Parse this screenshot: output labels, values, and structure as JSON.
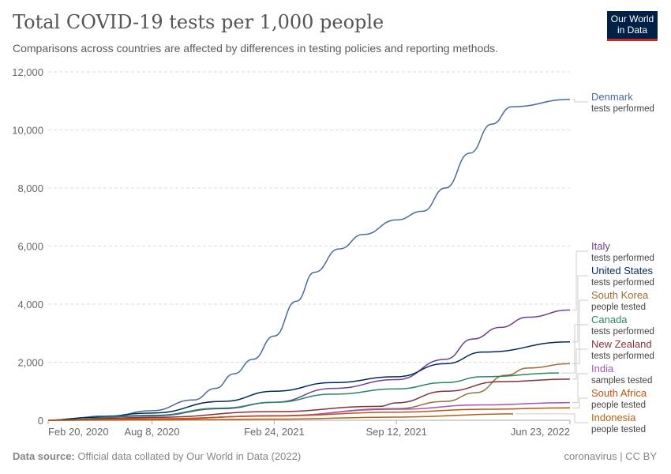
{
  "header": {
    "title": "Total COVID-19 tests per 1,000 people",
    "subtitle": "Comparisons across countries are affected by differences in testing policies and reporting methods.",
    "logo": "Our World in Data"
  },
  "footer": {
    "source_label": "Data source:",
    "source": "Official data collated by Our World in Data (2022)",
    "license": "coronavirus | CC BY"
  },
  "chart_data": {
    "type": "line",
    "title": "Total COVID-19 tests per 1,000 people",
    "xlim": [
      "2020-02-20",
      "2022-06-23"
    ],
    "ylim": [
      0,
      12000
    ],
    "x_ticks": [
      "Feb 20, 2020",
      "Aug 8, 2020",
      "Feb 24, 2021",
      "Sep 12, 2021",
      "Jun 23, 2022"
    ],
    "x_tick_dates": [
      "2020-02-20",
      "2020-08-08",
      "2021-02-24",
      "2021-09-12",
      "2022-06-23"
    ],
    "y_ticks": [
      0,
      2000,
      4000,
      6000,
      8000,
      10000,
      12000
    ],
    "y_tick_labels": [
      "0",
      "2,000",
      "4,000",
      "6,000",
      "8,000",
      "10,000",
      "12,000"
    ],
    "grid": "horizontal dashed",
    "legend": "right, end-of-line labels",
    "series": [
      {
        "name": "Denmark",
        "note": "tests performed",
        "color": "#4c6a9c",
        "points": [
          [
            "2020-02-20",
            0
          ],
          [
            "2020-06-01",
            150
          ],
          [
            "2020-08-08",
            330
          ],
          [
            "2020-10-15",
            700
          ],
          [
            "2020-11-20",
            1100
          ],
          [
            "2020-12-20",
            1600
          ],
          [
            "2021-01-20",
            2100
          ],
          [
            "2021-02-24",
            2900
          ],
          [
            "2021-04-01",
            4100
          ],
          [
            "2021-05-01",
            5100
          ],
          [
            "2021-06-10",
            5900
          ],
          [
            "2021-07-20",
            6400
          ],
          [
            "2021-09-12",
            6900
          ],
          [
            "2021-10-25",
            7200
          ],
          [
            "2021-12-01",
            8000
          ],
          [
            "2022-01-10",
            9200
          ],
          [
            "2022-02-15",
            10200
          ],
          [
            "2022-03-20",
            10800
          ],
          [
            "2022-06-23",
            11050
          ]
        ]
      },
      {
        "name": "Italy",
        "note": "tests performed",
        "color": "#6d3e91",
        "points": [
          [
            "2020-02-20",
            0
          ],
          [
            "2020-08-08",
            150
          ],
          [
            "2020-12-01",
            400
          ],
          [
            "2021-02-24",
            620
          ],
          [
            "2021-06-01",
            1100
          ],
          [
            "2021-09-12",
            1400
          ],
          [
            "2021-12-01",
            2100
          ],
          [
            "2022-01-15",
            2800
          ],
          [
            "2022-03-01",
            3200
          ],
          [
            "2022-04-15",
            3550
          ],
          [
            "2022-06-23",
            3800
          ]
        ]
      },
      {
        "name": "United States",
        "note": "tests performed",
        "color": "#00295b",
        "points": [
          [
            "2020-02-20",
            0
          ],
          [
            "2020-05-01",
            100
          ],
          [
            "2020-08-08",
            250
          ],
          [
            "2020-12-01",
            650
          ],
          [
            "2021-02-24",
            1000
          ],
          [
            "2021-06-01",
            1300
          ],
          [
            "2021-09-12",
            1500
          ],
          [
            "2021-12-01",
            1950
          ],
          [
            "2022-02-01",
            2350
          ],
          [
            "2022-06-23",
            2700
          ]
        ]
      },
      {
        "name": "South Korea",
        "note": "people tested",
        "color": "#996d39",
        "points": [
          [
            "2020-02-20",
            0
          ],
          [
            "2020-08-08",
            40
          ],
          [
            "2021-02-24",
            150
          ],
          [
            "2021-09-12",
            400
          ],
          [
            "2021-12-01",
            650
          ],
          [
            "2022-01-20",
            950
          ],
          [
            "2022-03-10",
            1550
          ],
          [
            "2022-04-15",
            1800
          ],
          [
            "2022-06-23",
            1950
          ]
        ]
      },
      {
        "name": "Canada",
        "note": "tests performed",
        "color": "#2c8465",
        "points": [
          [
            "2020-02-20",
            0
          ],
          [
            "2020-08-08",
            170
          ],
          [
            "2020-12-01",
            420
          ],
          [
            "2021-02-24",
            620
          ],
          [
            "2021-06-01",
            900
          ],
          [
            "2021-09-12",
            1080
          ],
          [
            "2021-12-01",
            1300
          ],
          [
            "2022-02-01",
            1500
          ],
          [
            "2022-06-05",
            1630
          ]
        ]
      },
      {
        "name": "New Zealand",
        "note": "tests performed",
        "color": "#883039",
        "points": [
          [
            "2020-02-20",
            0
          ],
          [
            "2020-08-08",
            100
          ],
          [
            "2021-02-24",
            300
          ],
          [
            "2021-08-15",
            480
          ],
          [
            "2021-09-12",
            600
          ],
          [
            "2021-12-01",
            1000
          ],
          [
            "2022-03-01",
            1330
          ],
          [
            "2022-06-23",
            1420
          ]
        ]
      },
      {
        "name": "India",
        "note": "samples tested",
        "color": "#a652ba",
        "points": [
          [
            "2020-02-20",
            0
          ],
          [
            "2020-08-08",
            30
          ],
          [
            "2021-02-24",
            160
          ],
          [
            "2021-09-12",
            380
          ],
          [
            "2022-02-01",
            530
          ],
          [
            "2022-06-23",
            610
          ]
        ]
      },
      {
        "name": "South Africa",
        "note": "people tested",
        "color": "#c4520d",
        "points": [
          [
            "2020-02-20",
            0
          ],
          [
            "2020-08-08",
            50
          ],
          [
            "2021-02-24",
            150
          ],
          [
            "2021-09-12",
            280
          ],
          [
            "2022-02-01",
            380
          ],
          [
            "2022-06-23",
            430
          ]
        ]
      },
      {
        "name": "Indonesia",
        "note": "people tested",
        "color": "#b16214",
        "points": [
          [
            "2020-02-20",
            0
          ],
          [
            "2020-08-08",
            10
          ],
          [
            "2021-02-24",
            40
          ],
          [
            "2021-09-12",
            110
          ],
          [
            "2022-03-22",
            220
          ]
        ]
      }
    ]
  }
}
